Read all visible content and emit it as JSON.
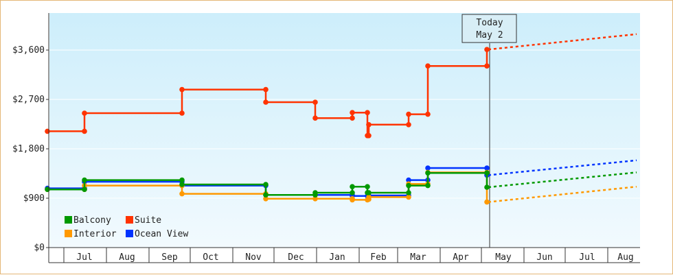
{
  "chart_data": {
    "type": "line",
    "step": true,
    "ylim": [
      0,
      4500
    ],
    "y_ticks": [
      {
        "value": 0,
        "label": "$0"
      },
      {
        "value": 900,
        "label": "$900"
      },
      {
        "value": 1800,
        "label": "$1,800"
      },
      {
        "value": 2700,
        "label": "$2,700"
      },
      {
        "value": 3600,
        "label": "$3,600"
      }
    ],
    "xlim": [
      0,
      428
    ],
    "x_month_boundaries": [
      11,
      42,
      73,
      103,
      134,
      164,
      195,
      226,
      254,
      285,
      315,
      346,
      376,
      407
    ],
    "x_month_labels": [
      {
        "label": "Jul",
        "x": 26
      },
      {
        "label": "Aug",
        "x": 57
      },
      {
        "label": "Sep",
        "x": 88
      },
      {
        "label": "Oct",
        "x": 118
      },
      {
        "label": "Nov",
        "x": 149
      },
      {
        "label": "Dec",
        "x": 180
      },
      {
        "label": "Jan",
        "x": 210
      },
      {
        "label": "Feb",
        "x": 240
      },
      {
        "label": "Mar",
        "x": 269
      },
      {
        "label": "Apr",
        "x": 300
      },
      {
        "label": "May",
        "x": 331
      },
      {
        "label": "Jun",
        "x": 361
      },
      {
        "label": "Jul",
        "x": 392
      },
      {
        "label": "Aug",
        "x": 420
      }
    ],
    "today": {
      "x": 321,
      "line1": "Today",
      "line2": "May 2"
    },
    "legend_position": "bottom-left",
    "series": [
      {
        "name": "Suite",
        "color": "#ff3300",
        "legend_col": 1,
        "legend_row": 0,
        "points": [
          [
            -1,
            2120
          ],
          [
            26,
            2120
          ],
          [
            26,
            2450
          ],
          [
            97,
            2450
          ],
          [
            97,
            2880
          ],
          [
            158,
            2880
          ],
          [
            158,
            2650
          ],
          [
            194,
            2650
          ],
          [
            194,
            2360
          ],
          [
            221,
            2360
          ],
          [
            221,
            2460
          ],
          [
            232,
            2460
          ],
          [
            232,
            2040
          ],
          [
            233,
            2040
          ],
          [
            233,
            2240
          ],
          [
            262,
            2240
          ],
          [
            262,
            2430
          ],
          [
            276,
            2430
          ],
          [
            276,
            3310
          ],
          [
            319,
            3310
          ],
          [
            319,
            3610
          ]
        ],
        "markers": [
          [
            -1,
            2120
          ],
          [
            26,
            2120
          ],
          [
            26,
            2450
          ],
          [
            97,
            2450
          ],
          [
            97,
            2880
          ],
          [
            158,
            2880
          ],
          [
            158,
            2650
          ],
          [
            194,
            2650
          ],
          [
            194,
            2360
          ],
          [
            221,
            2360
          ],
          [
            221,
            2460
          ],
          [
            232,
            2460
          ],
          [
            232,
            2040
          ],
          [
            233,
            2040
          ],
          [
            233,
            2240
          ],
          [
            262,
            2240
          ],
          [
            262,
            2430
          ],
          [
            276,
            2430
          ],
          [
            276,
            3310
          ],
          [
            319,
            3310
          ],
          [
            319,
            3610
          ]
        ],
        "forecast": [
          [
            320,
            3610
          ],
          [
            428,
            3890
          ]
        ]
      },
      {
        "name": "Ocean View",
        "color": "#0033ff",
        "legend_col": 1,
        "legend_row": 1,
        "points": [
          [
            -1,
            1080
          ],
          [
            26,
            1080
          ],
          [
            26,
            1200
          ],
          [
            97,
            1200
          ],
          [
            97,
            1130
          ],
          [
            158,
            1130
          ],
          [
            158,
            960
          ],
          [
            194,
            960
          ],
          [
            194,
            960
          ],
          [
            221,
            960
          ],
          [
            221,
            940
          ],
          [
            232,
            940
          ],
          [
            232,
            950
          ],
          [
            262,
            950
          ],
          [
            262,
            1230
          ],
          [
            276,
            1230
          ],
          [
            276,
            1450
          ],
          [
            319,
            1450
          ],
          [
            319,
            1320
          ]
        ],
        "markers": [
          [
            -1,
            1080
          ],
          [
            26,
            1080
          ],
          [
            26,
            1200
          ],
          [
            97,
            1200
          ],
          [
            97,
            1130
          ],
          [
            158,
            1130
          ],
          [
            158,
            960
          ],
          [
            194,
            960
          ],
          [
            221,
            960
          ],
          [
            221,
            940
          ],
          [
            232,
            940
          ],
          [
            233,
            950
          ],
          [
            262,
            950
          ],
          [
            262,
            1230
          ],
          [
            276,
            1230
          ],
          [
            276,
            1450
          ],
          [
            319,
            1450
          ],
          [
            319,
            1320
          ]
        ],
        "forecast": [
          [
            320,
            1320
          ],
          [
            428,
            1590
          ]
        ]
      },
      {
        "name": "Interior",
        "color": "#ff9900",
        "legend_col": 0,
        "legend_row": 1,
        "points": [
          [
            -1,
            1060
          ],
          [
            26,
            1060
          ],
          [
            26,
            1130
          ],
          [
            97,
            1130
          ],
          [
            97,
            980
          ],
          [
            158,
            980
          ],
          [
            158,
            890
          ],
          [
            194,
            890
          ],
          [
            194,
            890
          ],
          [
            221,
            890
          ],
          [
            221,
            870
          ],
          [
            232,
            870
          ],
          [
            232,
            880
          ],
          [
            233,
            880
          ],
          [
            233,
            920
          ],
          [
            262,
            920
          ],
          [
            262,
            1160
          ],
          [
            276,
            1160
          ],
          [
            276,
            1370
          ],
          [
            319,
            1370
          ],
          [
            319,
            830
          ]
        ],
        "markers": [
          [
            -1,
            1060
          ],
          [
            26,
            1060
          ],
          [
            26,
            1130
          ],
          [
            97,
            1130
          ],
          [
            97,
            980
          ],
          [
            158,
            980
          ],
          [
            158,
            890
          ],
          [
            194,
            890
          ],
          [
            221,
            890
          ],
          [
            221,
            870
          ],
          [
            232,
            870
          ],
          [
            233,
            880
          ],
          [
            233,
            920
          ],
          [
            262,
            920
          ],
          [
            262,
            1160
          ],
          [
            276,
            1160
          ],
          [
            276,
            1370
          ],
          [
            319,
            1370
          ],
          [
            319,
            830
          ]
        ],
        "forecast": [
          [
            320,
            830
          ],
          [
            428,
            1110
          ]
        ]
      },
      {
        "name": "Balcony",
        "color": "#009900",
        "legend_col": 0,
        "legend_row": 0,
        "points": [
          [
            -1,
            1060
          ],
          [
            26,
            1060
          ],
          [
            26,
            1230
          ],
          [
            97,
            1230
          ],
          [
            97,
            1150
          ],
          [
            158,
            1150
          ],
          [
            158,
            960
          ],
          [
            194,
            960
          ],
          [
            194,
            1000
          ],
          [
            221,
            1000
          ],
          [
            221,
            1110
          ],
          [
            232,
            1110
          ],
          [
            232,
            1000
          ],
          [
            262,
            1000
          ],
          [
            262,
            1130
          ],
          [
            276,
            1130
          ],
          [
            276,
            1360
          ],
          [
            319,
            1360
          ],
          [
            319,
            1100
          ]
        ],
        "markers": [
          [
            -1,
            1060
          ],
          [
            26,
            1060
          ],
          [
            26,
            1230
          ],
          [
            97,
            1230
          ],
          [
            97,
            1150
          ],
          [
            158,
            1150
          ],
          [
            158,
            960
          ],
          [
            194,
            960
          ],
          [
            194,
            1000
          ],
          [
            221,
            1000
          ],
          [
            221,
            1110
          ],
          [
            232,
            1110
          ],
          [
            232,
            1000
          ],
          [
            233,
            1000
          ],
          [
            262,
            1000
          ],
          [
            262,
            1130
          ],
          [
            276,
            1130
          ],
          [
            276,
            1360
          ],
          [
            319,
            1360
          ],
          [
            319,
            1100
          ]
        ],
        "forecast": [
          [
            320,
            1100
          ],
          [
            428,
            1370
          ]
        ]
      }
    ]
  }
}
